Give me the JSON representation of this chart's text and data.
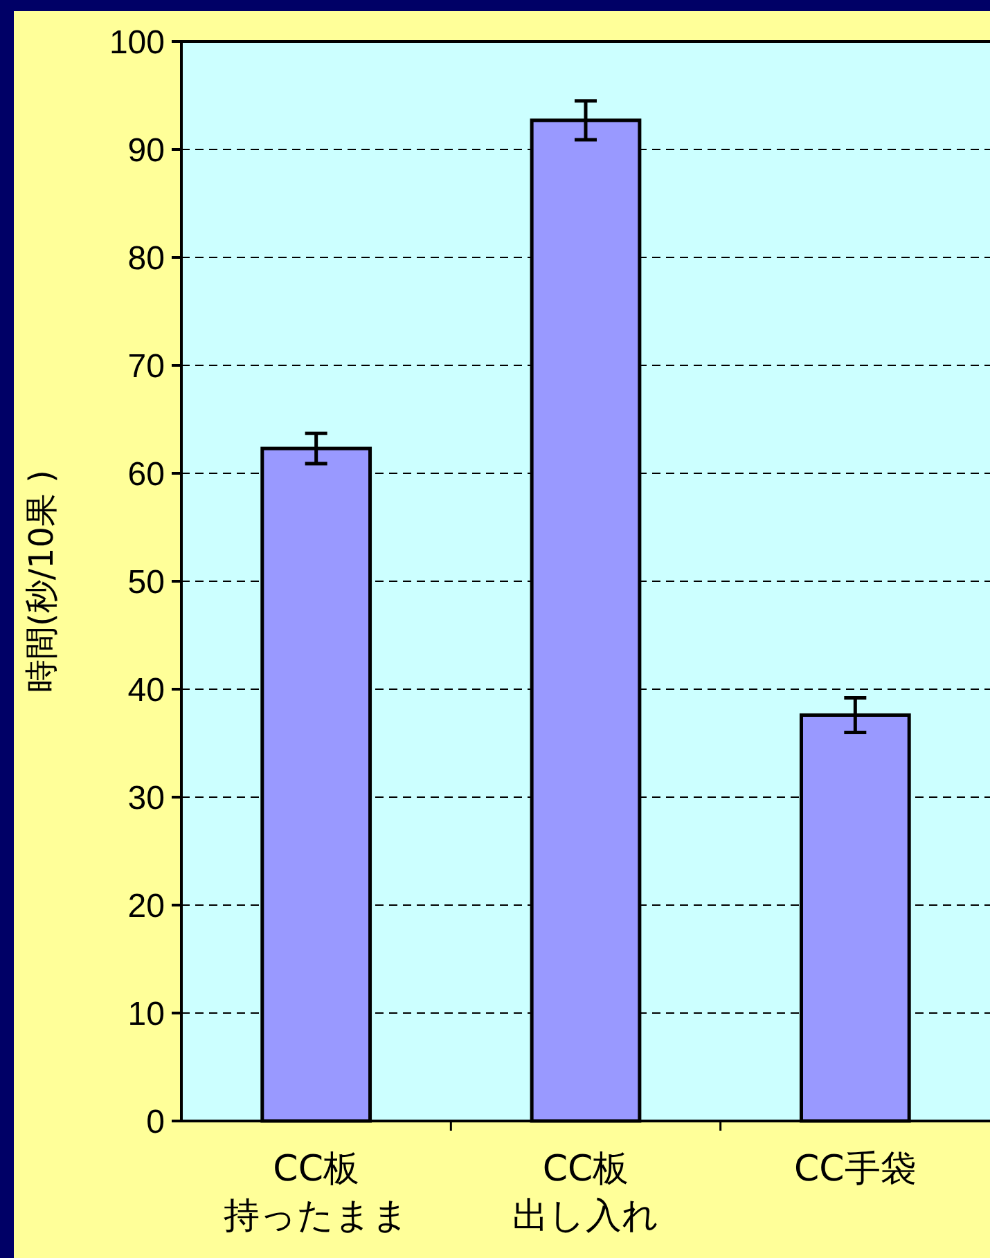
{
  "chart_data": {
    "type": "bar",
    "ylabel": "時間(秒/10果 )",
    "categories": [
      "CC板持ったまま",
      "CC板出し入れ",
      "CC手袋"
    ],
    "values": [
      62.3,
      92.7,
      37.6
    ],
    "errors": [
      1.4,
      1.8,
      1.6
    ],
    "color": "#9999ff",
    "ylim": [
      0,
      100
    ],
    "yticks": [
      0,
      10,
      20,
      30,
      40,
      50,
      60,
      70,
      80,
      90,
      100
    ],
    "grid": "y"
  }
}
